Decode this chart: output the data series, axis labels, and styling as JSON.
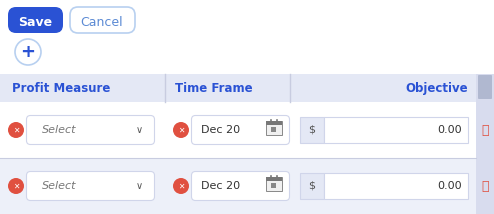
{
  "bg_color": "#ffffff",
  "table_bg": "#edf0f9",
  "table_header_bg": "#e4e8f5",
  "row1_bg": "#ffffff",
  "row2_bg": "#edf0f9",
  "header_text_color": "#2a52d4",
  "save_btn_color": "#2a52d4",
  "save_btn_text": "Save",
  "cancel_btn_text": "Cancel",
  "cancel_text_color": "#5b8ad4",
  "cancel_btn_border": "#b8d0f0",
  "plus_btn_color": "#2a52d4",
  "plus_btn_border": "#b8d0f0",
  "col_headers": [
    "Profit Measure",
    "Time Frame",
    "Objective"
  ],
  "rows": [
    {
      "select_text": "Select",
      "date_text": "Dec 20",
      "dollar": "$",
      "value": "0.00"
    },
    {
      "select_text": "Select",
      "date_text": "Dec 20",
      "dollar": "$",
      "value": "0.00"
    }
  ],
  "divider_color": "#c8cce0",
  "error_icon_color": "#e05040",
  "trash_color": "#e05040",
  "input_border": "#d0d5ea",
  "input_bg": "#ffffff",
  "dollar_bg": "#e4e8f5",
  "text_color": "#333333",
  "select_color": "#777777",
  "scroll_bg": "#d8dcee",
  "scroll_thumb": "#b0b8d0"
}
